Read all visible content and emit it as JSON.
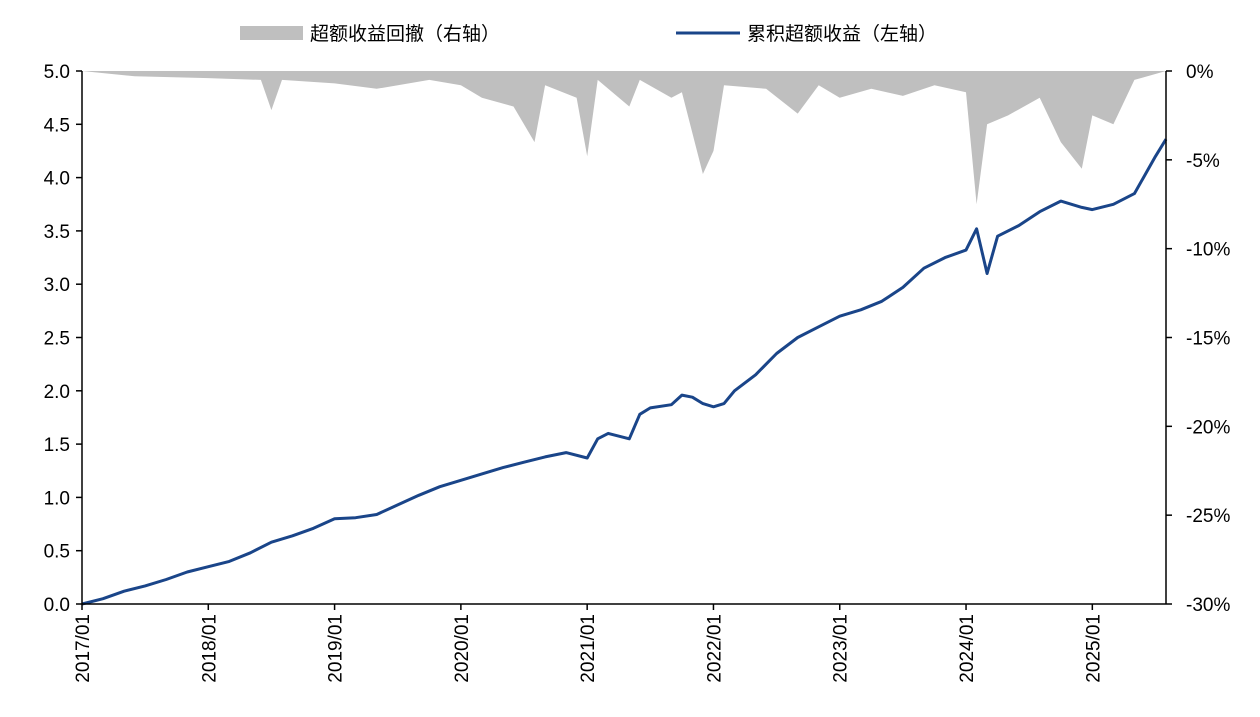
{
  "chart_data": {
    "type": "line",
    "title": "",
    "xlabel": "",
    "ylabel": "",
    "legend": {
      "placement": "top",
      "items": [
        {
          "key": "drawdown",
          "label": "超额收益回撤（右轴）"
        },
        {
          "key": "cumulative",
          "label": "累积超额收益（左轴）"
        }
      ]
    },
    "colors": {
      "cumulative": "#1a4589",
      "drawdown": "#bfbfbf",
      "axis": "#000000"
    },
    "x_ticks": [
      "2017/01",
      "2018/01",
      "2019/01",
      "2020/01",
      "2021/01",
      "2022/01",
      "2023/01",
      "2024/01",
      "2025/01"
    ],
    "x_range": [
      "2017-01",
      "2025-07"
    ],
    "y_left": {
      "range": [
        0.0,
        5.0
      ],
      "ticks": [
        "0.0",
        "0.5",
        "1.0",
        "1.5",
        "2.0",
        "2.5",
        "3.0",
        "3.5",
        "4.0",
        "4.5",
        "5.0"
      ]
    },
    "y_right": {
      "range": [
        -30,
        0
      ],
      "ticks": [
        "0%",
        "-5%",
        "-10%",
        "-15%",
        "-20%",
        "-25%",
        "-30%"
      ]
    },
    "grid": false,
    "series": [
      {
        "key": "cumulative",
        "axis": "left",
        "chart_type": "line",
        "points": [
          [
            "2017-01",
            0.0
          ],
          [
            "2017-03",
            0.05
          ],
          [
            "2017-05",
            0.12
          ],
          [
            "2017-07",
            0.17
          ],
          [
            "2017-09",
            0.23
          ],
          [
            "2017-11",
            0.3
          ],
          [
            "2018-01",
            0.35
          ],
          [
            "2018-03",
            0.4
          ],
          [
            "2018-05",
            0.48
          ],
          [
            "2018-07",
            0.58
          ],
          [
            "2018-09",
            0.64
          ],
          [
            "2018-11",
            0.71
          ],
          [
            "2019-01",
            0.8
          ],
          [
            "2019-03",
            0.81
          ],
          [
            "2019-05",
            0.84
          ],
          [
            "2019-07",
            0.93
          ],
          [
            "2019-09",
            1.02
          ],
          [
            "2019-11",
            1.1
          ],
          [
            "2020-01",
            1.16
          ],
          [
            "2020-03",
            1.22
          ],
          [
            "2020-05",
            1.28
          ],
          [
            "2020-07",
            1.33
          ],
          [
            "2020-09",
            1.38
          ],
          [
            "2020-11",
            1.42
          ],
          [
            "2021-01",
            1.37
          ],
          [
            "2021-02",
            1.55
          ],
          [
            "2021-03",
            1.6
          ],
          [
            "2021-05",
            1.55
          ],
          [
            "2021-06",
            1.78
          ],
          [
            "2021-07",
            1.84
          ],
          [
            "2021-09",
            1.87
          ],
          [
            "2021-10",
            1.96
          ],
          [
            "2021-11",
            1.94
          ],
          [
            "2021-12",
            1.88
          ],
          [
            "2022-01",
            1.85
          ],
          [
            "2022-02",
            1.88
          ],
          [
            "2022-03",
            2.0
          ],
          [
            "2022-05",
            2.15
          ],
          [
            "2022-07",
            2.35
          ],
          [
            "2022-09",
            2.5
          ],
          [
            "2022-11",
            2.6
          ],
          [
            "2023-01",
            2.7
          ],
          [
            "2023-03",
            2.76
          ],
          [
            "2023-05",
            2.84
          ],
          [
            "2023-07",
            2.97
          ],
          [
            "2023-09",
            3.15
          ],
          [
            "2023-11",
            3.25
          ],
          [
            "2024-01",
            3.32
          ],
          [
            "2024-02",
            3.52
          ],
          [
            "2024-03",
            3.1
          ],
          [
            "2024-04",
            3.45
          ],
          [
            "2024-06",
            3.55
          ],
          [
            "2024-08",
            3.68
          ],
          [
            "2024-10",
            3.78
          ],
          [
            "2024-12",
            3.72
          ],
          [
            "2025-01",
            3.7
          ],
          [
            "2025-03",
            3.75
          ],
          [
            "2025-05",
            3.85
          ],
          [
            "2025-07",
            4.2
          ],
          [
            "2025-08",
            4.36
          ]
        ]
      },
      {
        "key": "drawdown",
        "axis": "right",
        "chart_type": "area",
        "points": [
          [
            "2017-01",
            0.0
          ],
          [
            "2017-06",
            -0.3
          ],
          [
            "2018-01",
            -0.4
          ],
          [
            "2018-06",
            -0.5
          ],
          [
            "2018-07",
            -2.2
          ],
          [
            "2018-08",
            -0.5
          ],
          [
            "2019-01",
            -0.7
          ],
          [
            "2019-05",
            -1.0
          ],
          [
            "2019-10",
            -0.5
          ],
          [
            "2020-01",
            -0.8
          ],
          [
            "2020-03",
            -1.5
          ],
          [
            "2020-06",
            -2.0
          ],
          [
            "2020-08",
            -4.0
          ],
          [
            "2020-09",
            -0.8
          ],
          [
            "2020-12",
            -1.5
          ],
          [
            "2021-01",
            -4.8
          ],
          [
            "2021-02",
            -0.5
          ],
          [
            "2021-05",
            -2.0
          ],
          [
            "2021-06",
            -0.5
          ],
          [
            "2021-09",
            -1.5
          ],
          [
            "2021-10",
            -1.2
          ],
          [
            "2021-12",
            -5.8
          ],
          [
            "2022-01",
            -4.5
          ],
          [
            "2022-02",
            -0.8
          ],
          [
            "2022-06",
            -1.0
          ],
          [
            "2022-09",
            -2.4
          ],
          [
            "2022-11",
            -0.8
          ],
          [
            "2023-01",
            -1.5
          ],
          [
            "2023-04",
            -1.0
          ],
          [
            "2023-07",
            -1.4
          ],
          [
            "2023-10",
            -0.8
          ],
          [
            "2024-01",
            -1.2
          ],
          [
            "2024-02",
            -7.5
          ],
          [
            "2024-03",
            -3.0
          ],
          [
            "2024-05",
            -2.5
          ],
          [
            "2024-08",
            -1.5
          ],
          [
            "2024-10",
            -4.0
          ],
          [
            "2024-12",
            -5.5
          ],
          [
            "2025-01",
            -2.5
          ],
          [
            "2025-03",
            -3.0
          ],
          [
            "2025-05",
            -0.5
          ],
          [
            "2025-08",
            0.0
          ]
        ]
      }
    ]
  }
}
